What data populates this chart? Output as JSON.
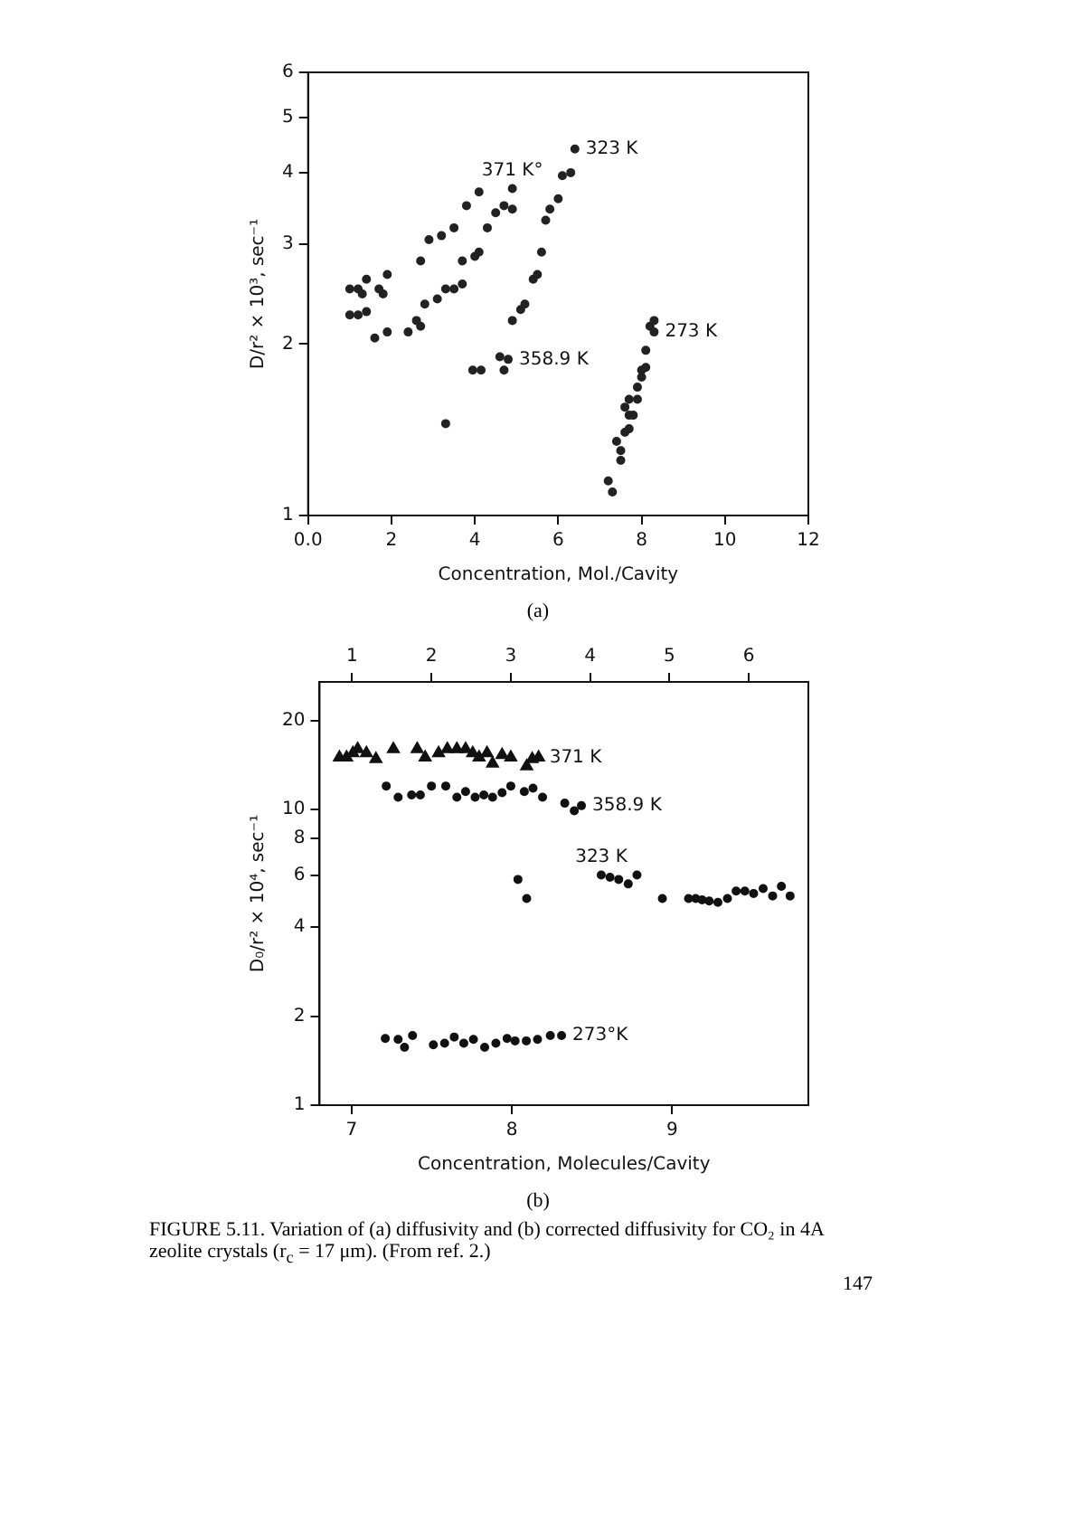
{
  "chart_data": [
    {
      "type": "scatter",
      "xlabel": "Concentration, Mol./Cavity",
      "ylabel": "D/r² × 10³, sec⁻¹",
      "log": "y",
      "grid": false,
      "marker": "circle",
      "xlim": [
        0,
        12
      ],
      "xticks": [
        {
          "value": 0,
          "label": "0.0"
        },
        2,
        4,
        6,
        8,
        10,
        12
      ],
      "ylim": [
        1,
        6
      ],
      "yticks": [
        1,
        2,
        3,
        4,
        5,
        6
      ],
      "series": [
        {
          "name": "371 K°",
          "color": "#222222",
          "x": [
            1.0,
            1.2,
            1.3,
            1.4,
            1.7,
            1.8,
            1.9,
            2.7,
            2.9,
            3.2,
            3.5,
            3.8,
            4.1,
            4.3,
            4.5,
            4.7,
            4.9,
            4.9
          ],
          "values": [
            2.5,
            2.5,
            2.45,
            2.6,
            2.5,
            2.45,
            2.65,
            2.8,
            3.05,
            3.1,
            3.2,
            3.5,
            3.7,
            3.2,
            3.4,
            3.5,
            3.45,
            3.75
          ]
        },
        {
          "name": "358.9 K",
          "color": "#222222",
          "x": [
            1.0,
            1.2,
            1.4,
            1.6,
            1.9,
            2.4,
            2.6,
            2.7,
            2.8,
            3.1,
            3.3,
            3.5,
            3.7,
            3.7,
            4.0,
            4.1,
            3.3,
            3.95,
            4.15,
            4.6,
            4.7,
            4.8
          ],
          "values": [
            2.25,
            2.25,
            2.28,
            2.05,
            2.1,
            2.1,
            2.2,
            2.15,
            2.35,
            2.4,
            2.5,
            2.5,
            2.55,
            2.8,
            2.85,
            2.9,
            1.45,
            1.8,
            1.8,
            1.9,
            1.8,
            1.88
          ]
        },
        {
          "name": "323 K",
          "color": "#222222",
          "x": [
            4.9,
            5.1,
            5.2,
            5.4,
            5.5,
            5.6,
            5.7,
            5.8,
            6.0,
            6.1,
            6.3,
            6.4
          ],
          "values": [
            2.2,
            2.3,
            2.35,
            2.6,
            2.65,
            2.9,
            3.3,
            3.45,
            3.6,
            3.95,
            4.0,
            4.4
          ]
        },
        {
          "name": "273 K",
          "color": "#222222",
          "x": [
            7.2,
            7.3,
            7.4,
            7.5,
            7.5,
            7.6,
            7.7,
            7.6,
            7.7,
            7.8,
            7.7,
            7.9,
            7.9,
            8.0,
            8.0,
            8.1,
            8.1,
            8.2,
            8.3,
            8.3
          ],
          "values": [
            1.15,
            1.1,
            1.35,
            1.25,
            1.3,
            1.4,
            1.42,
            1.55,
            1.5,
            1.5,
            1.6,
            1.6,
            1.68,
            1.75,
            1.8,
            1.82,
            1.95,
            2.15,
            2.1,
            2.2
          ]
        }
      ],
      "annotations": [
        "(a)"
      ]
    },
    {
      "type": "scatter",
      "xlabel": "Concentration, Molecules/Cavity",
      "ylabel": "D₀/r² × 10⁴, sec⁻¹",
      "log": "y",
      "grid": false,
      "marker": "circle",
      "xlim": [
        6.8,
        9.85
      ],
      "xticks": [
        7,
        8,
        9
      ],
      "x2lim": [
        0.59,
        6.75
      ],
      "x2ticks": [
        1,
        2,
        3,
        4,
        5,
        6
      ],
      "ylim": [
        1,
        27
      ],
      "yticks": [
        1,
        2,
        4,
        6,
        8,
        10,
        20
      ],
      "series": [
        {
          "name": "371 K",
          "color": "#111111",
          "axis": "x2",
          "marker": "triangle",
          "x": [
            0.84,
            0.93,
            1.01,
            1.07,
            1.18,
            1.3,
            1.52,
            1.82,
            1.92,
            2.09,
            2.2,
            2.32,
            2.43,
            2.52,
            2.6,
            2.7,
            2.77,
            2.89,
            3.0,
            3.2,
            3.27,
            3.35
          ],
          "values": [
            15,
            15,
            15.5,
            16,
            15.5,
            14.8,
            16,
            16,
            15,
            15.5,
            16,
            16,
            16,
            15.5,
            15,
            15.5,
            14.3,
            15.3,
            15,
            14,
            14.8,
            15
          ]
        },
        {
          "name": "358.9 K",
          "color": "#111111",
          "axis": "x2",
          "x": [
            1.43,
            1.58,
            1.75,
            1.86,
            2.0,
            2.18,
            2.32,
            2.43,
            2.55,
            2.66,
            2.77,
            2.89,
            3.0,
            3.17,
            3.28,
            3.4,
            3.68,
            3.8,
            3.89
          ],
          "values": [
            12,
            11,
            11.2,
            11.2,
            12,
            12,
            11,
            11.5,
            11,
            11.2,
            11,
            11.4,
            12,
            11.5,
            11.8,
            11,
            10.5,
            9.9,
            10.3
          ]
        },
        {
          "name": "323 K",
          "color": "#111111",
          "axis": "x2",
          "x": [
            3.09,
            3.2,
            4.14,
            4.25,
            4.36,
            4.48,
            4.59,
            4.91,
            5.24,
            5.33,
            5.41,
            5.5,
            5.61,
            5.73,
            5.84,
            5.95,
            6.06,
            6.18,
            6.3,
            6.41,
            6.52
          ],
          "values": [
            5.8,
            5.0,
            6.0,
            5.9,
            5.8,
            5.6,
            6.0,
            5.0,
            5.0,
            5.0,
            4.95,
            4.9,
            4.85,
            5.0,
            5.3,
            5.3,
            5.2,
            5.4,
            5.1,
            5.5,
            5.1
          ]
        },
        {
          "name": "273°K",
          "color": "#111111",
          "x": [
            7.21,
            7.29,
            7.33,
            7.38,
            7.51,
            7.58,
            7.64,
            7.7,
            7.76,
            7.83,
            7.9,
            7.97,
            8.02,
            8.09,
            8.16,
            8.24,
            8.31
          ],
          "values": [
            1.68,
            1.67,
            1.57,
            1.72,
            1.6,
            1.62,
            1.7,
            1.62,
            1.67,
            1.57,
            1.62,
            1.68,
            1.65,
            1.65,
            1.67,
            1.72,
            1.72
          ]
        }
      ],
      "annotations": [
        "(b)",
        "FIGURE 5.11. Variation of (a) diffusivity and (b) corrected diffusivity for CO₂ in 4A zeolite crystals (r$_{c}$ = 17 μm). (From ref. 2.)",
        "147"
      ]
    }
  ]
}
